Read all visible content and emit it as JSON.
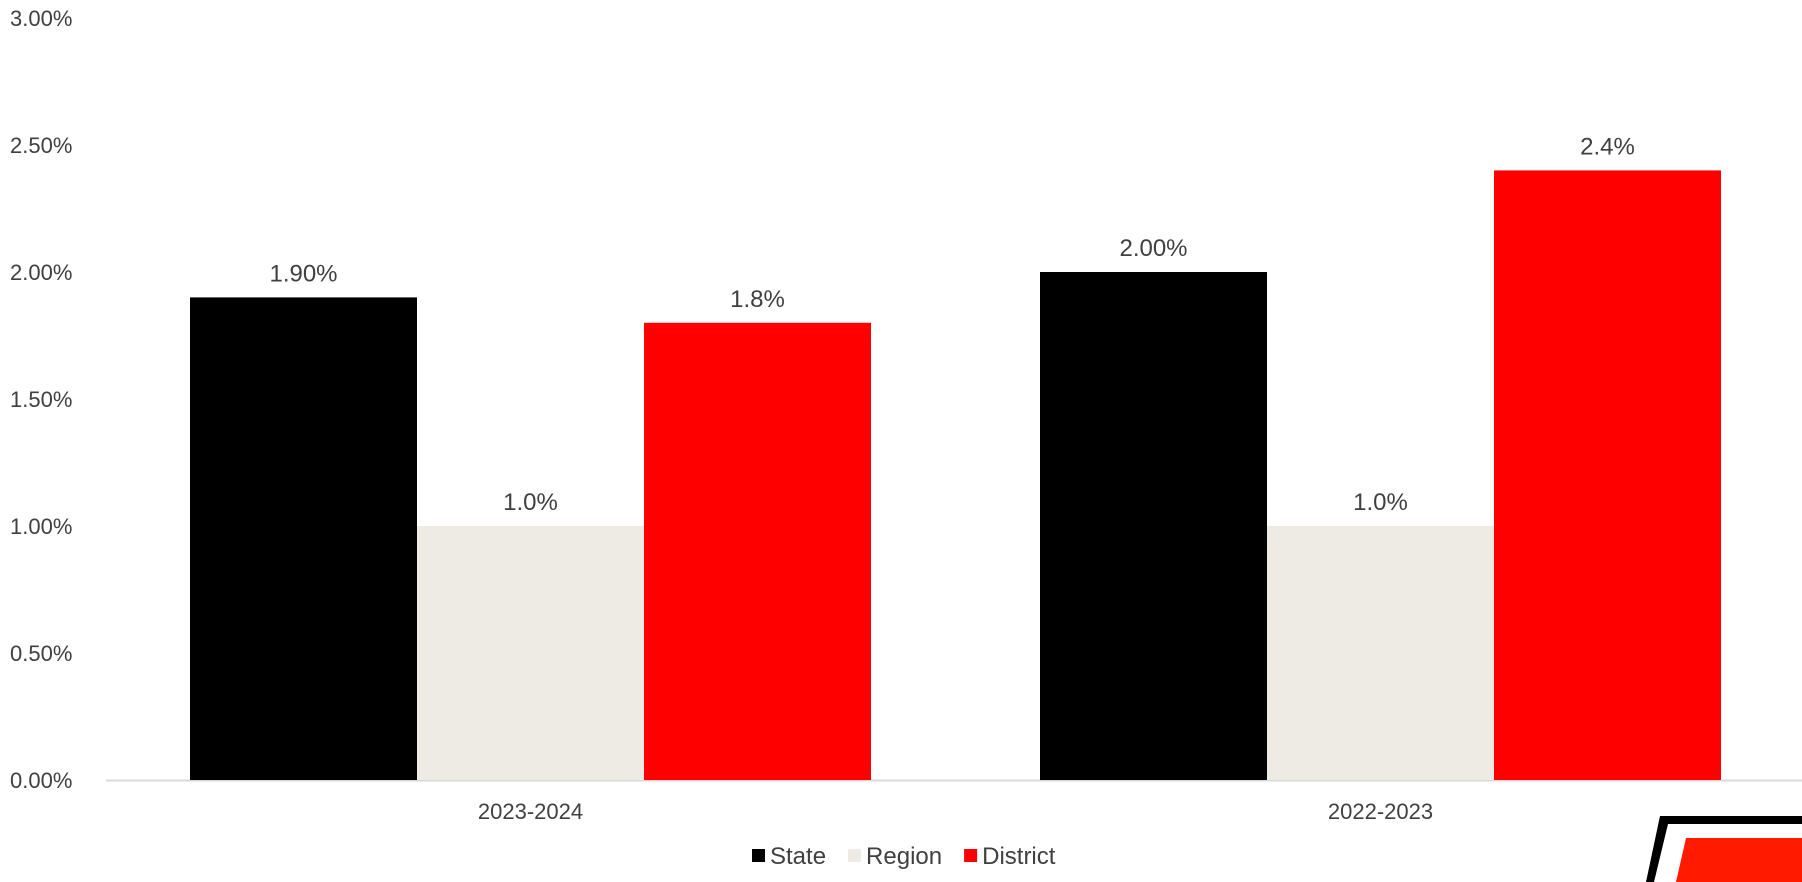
{
  "chart_data": {
    "type": "bar",
    "categories": [
      "2023-2024",
      "2022-2023"
    ],
    "series": [
      {
        "name": "State",
        "values": [
          1.9,
          2.0
        ],
        "labels": [
          "1.90%",
          "2.00%"
        ],
        "color": "#000000"
      },
      {
        "name": "Region",
        "values": [
          1.0,
          1.0
        ],
        "labels": [
          "1.0%",
          "1.0%"
        ],
        "color": "#EEEBE4"
      },
      {
        "name": "District",
        "values": [
          1.8,
          2.4
        ],
        "labels": [
          "1.8%",
          "2.4%"
        ],
        "color": "#FF0000"
      }
    ],
    "y_ticks": [
      "0.00%",
      "0.50%",
      "1.00%",
      "1.50%",
      "2.00%",
      "2.50%",
      "3.00%"
    ],
    "ylim": [
      0,
      3.0
    ],
    "y_unit": "percent",
    "grid": false,
    "legend_position": "bottom"
  },
  "colors": {
    "axis": "#D9D9D9",
    "text": "#404040",
    "logo_red": "#FF1A00",
    "logo_black": "#000000"
  },
  "logo": {
    "icon": "district-logo-corner"
  }
}
